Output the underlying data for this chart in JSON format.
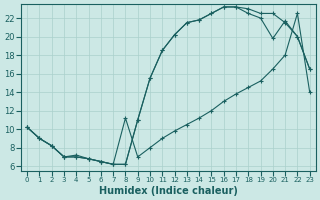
{
  "xlabel": "Humidex (Indice chaleur)",
  "bg_color": "#cce8e5",
  "line_color": "#1a6060",
  "grid_color": "#aad0cc",
  "xlim_min": -0.5,
  "xlim_max": 23.5,
  "ylim_min": 5.5,
  "ylim_max": 23.5,
  "yticks": [
    6,
    8,
    10,
    12,
    14,
    16,
    18,
    20,
    22
  ],
  "xticks": [
    0,
    1,
    2,
    3,
    4,
    5,
    6,
    7,
    8,
    9,
    10,
    11,
    12,
    13,
    14,
    15,
    16,
    17,
    18,
    19,
    20,
    21,
    22,
    23
  ],
  "curve1_x": [
    0,
    1,
    2,
    3,
    4,
    5,
    6,
    7,
    8,
    9,
    10,
    11,
    12,
    13,
    14,
    15,
    16,
    17,
    18,
    19,
    20,
    21,
    22,
    23
  ],
  "curve1_y": [
    10.2,
    9.0,
    8.2,
    7.0,
    7.0,
    6.8,
    6.5,
    6.2,
    6.2,
    11.0,
    15.5,
    18.5,
    20.2,
    21.5,
    21.8,
    22.5,
    23.2,
    23.2,
    23.0,
    22.5,
    22.5,
    21.5,
    20.0,
    16.5
  ],
  "curve2_x": [
    0,
    1,
    2,
    3,
    4,
    5,
    6,
    7,
    8,
    9,
    10,
    11,
    12,
    13,
    14,
    15,
    16,
    17,
    18,
    19,
    20,
    21,
    22,
    23
  ],
  "curve2_y": [
    10.2,
    9.0,
    8.2,
    7.0,
    7.0,
    6.8,
    6.5,
    6.2,
    6.2,
    11.0,
    15.5,
    18.5,
    20.2,
    21.5,
    21.8,
    22.5,
    23.2,
    23.2,
    22.5,
    22.0,
    19.8,
    21.7,
    20.0,
    16.5
  ],
  "curve3_x": [
    0,
    1,
    2,
    3,
    4,
    5,
    6,
    7,
    8,
    9,
    10,
    11,
    12,
    13,
    14,
    15,
    16,
    17,
    18,
    19,
    20,
    21,
    22,
    23
  ],
  "curve3_y": [
    10.2,
    9.0,
    8.2,
    7.0,
    7.2,
    6.8,
    6.5,
    6.2,
    11.2,
    7.0,
    8.0,
    9.0,
    9.8,
    10.5,
    11.2,
    12.0,
    13.0,
    13.8,
    14.5,
    15.2,
    16.5,
    18.0,
    22.5,
    14.0
  ]
}
